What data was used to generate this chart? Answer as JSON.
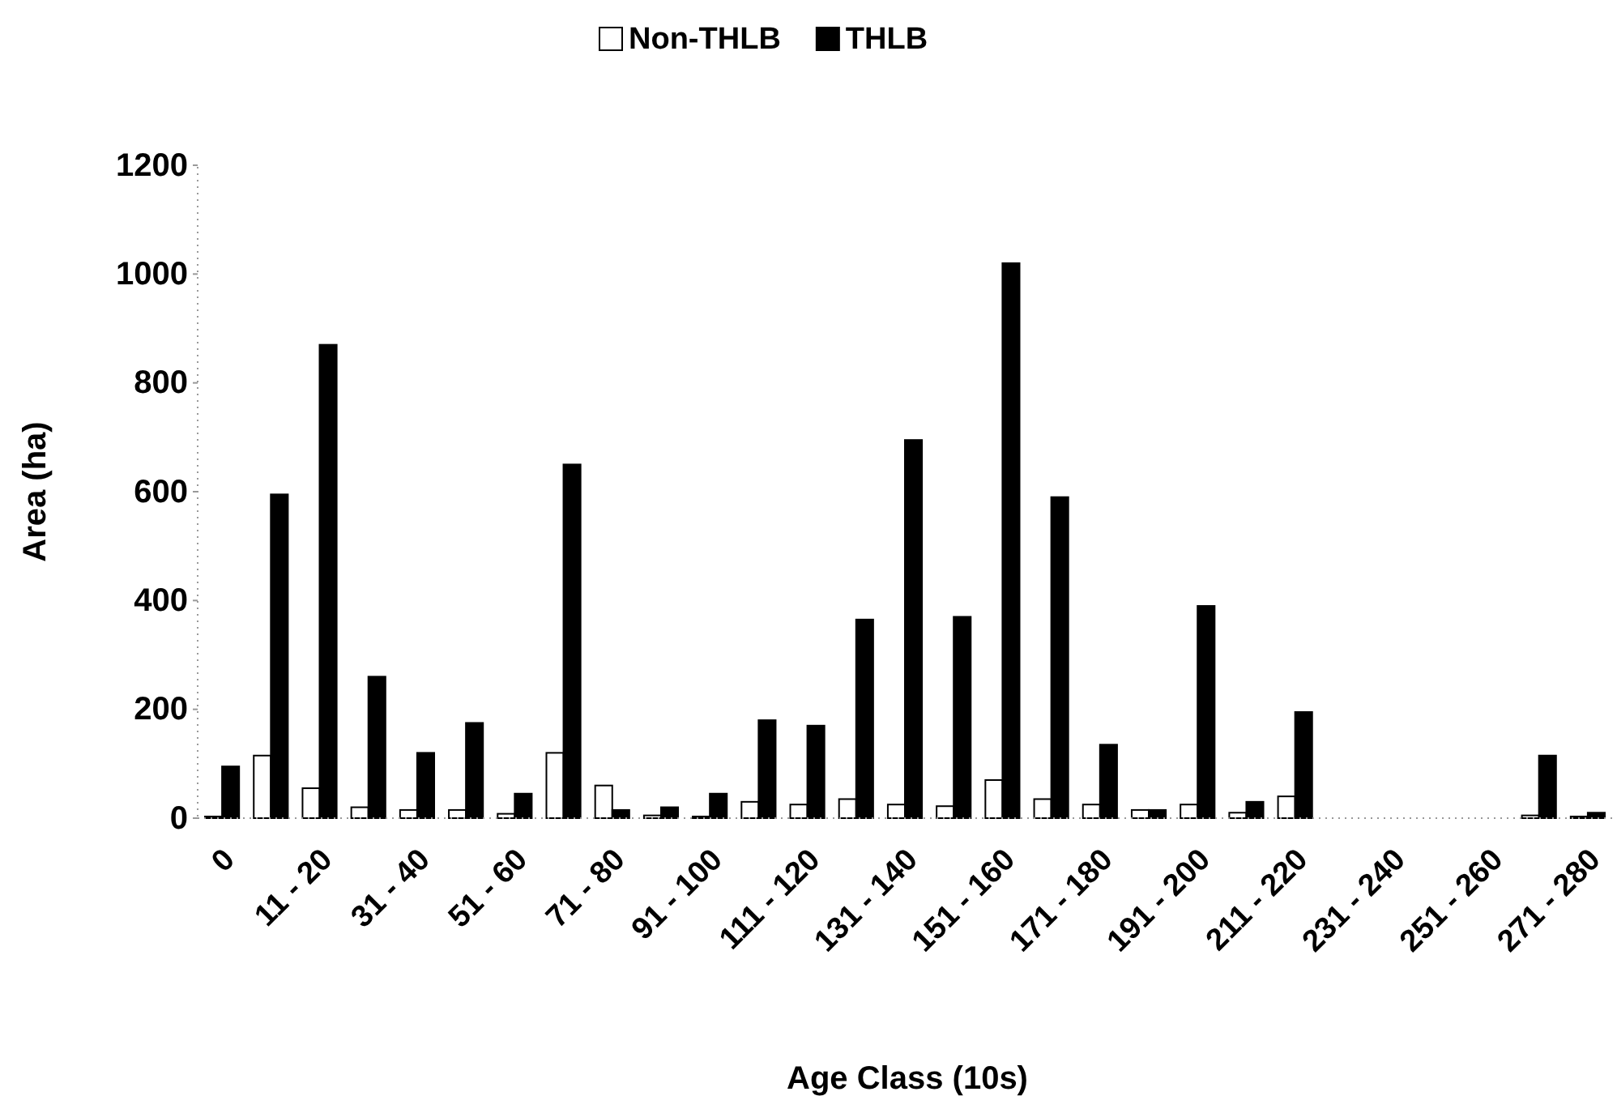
{
  "chart_data": {
    "type": "bar",
    "xlabel": "Age Class (10s)",
    "ylabel": "Area (ha)",
    "categories": [
      "0",
      null,
      "11 - 20",
      null,
      "31 - 40",
      null,
      "51 - 60",
      null,
      "71 - 80",
      null,
      "91 - 100",
      null,
      "111 - 120",
      null,
      "131 - 140",
      null,
      "151 - 160",
      null,
      "171 - 180",
      null,
      "191 - 200",
      null,
      "211 - 220",
      null,
      "231 - 240",
      null,
      "251 - 260",
      null,
      "271 - 280"
    ],
    "series": [
      {
        "name": "Non-THLB",
        "color": "#ffffff",
        "values": [
          3,
          115,
          55,
          20,
          15,
          15,
          8,
          120,
          60,
          5,
          3,
          30,
          25,
          35,
          25,
          22,
          70,
          35,
          25,
          15,
          25,
          10,
          40,
          null,
          null,
          null,
          null,
          5,
          3
        ]
      },
      {
        "name": "THLB",
        "color": "#000000",
        "values": [
          95,
          595,
          870,
          260,
          120,
          175,
          45,
          650,
          15,
          20,
          45,
          180,
          170,
          365,
          695,
          370,
          1020,
          590,
          135,
          15,
          390,
          30,
          195,
          null,
          null,
          null,
          null,
          115,
          10
        ]
      }
    ],
    "ylim": [
      0,
      1200
    ],
    "yticks": [
      0,
      200,
      400,
      600,
      800,
      1000,
      1200
    ],
    "legend": "top",
    "grid": false
  }
}
